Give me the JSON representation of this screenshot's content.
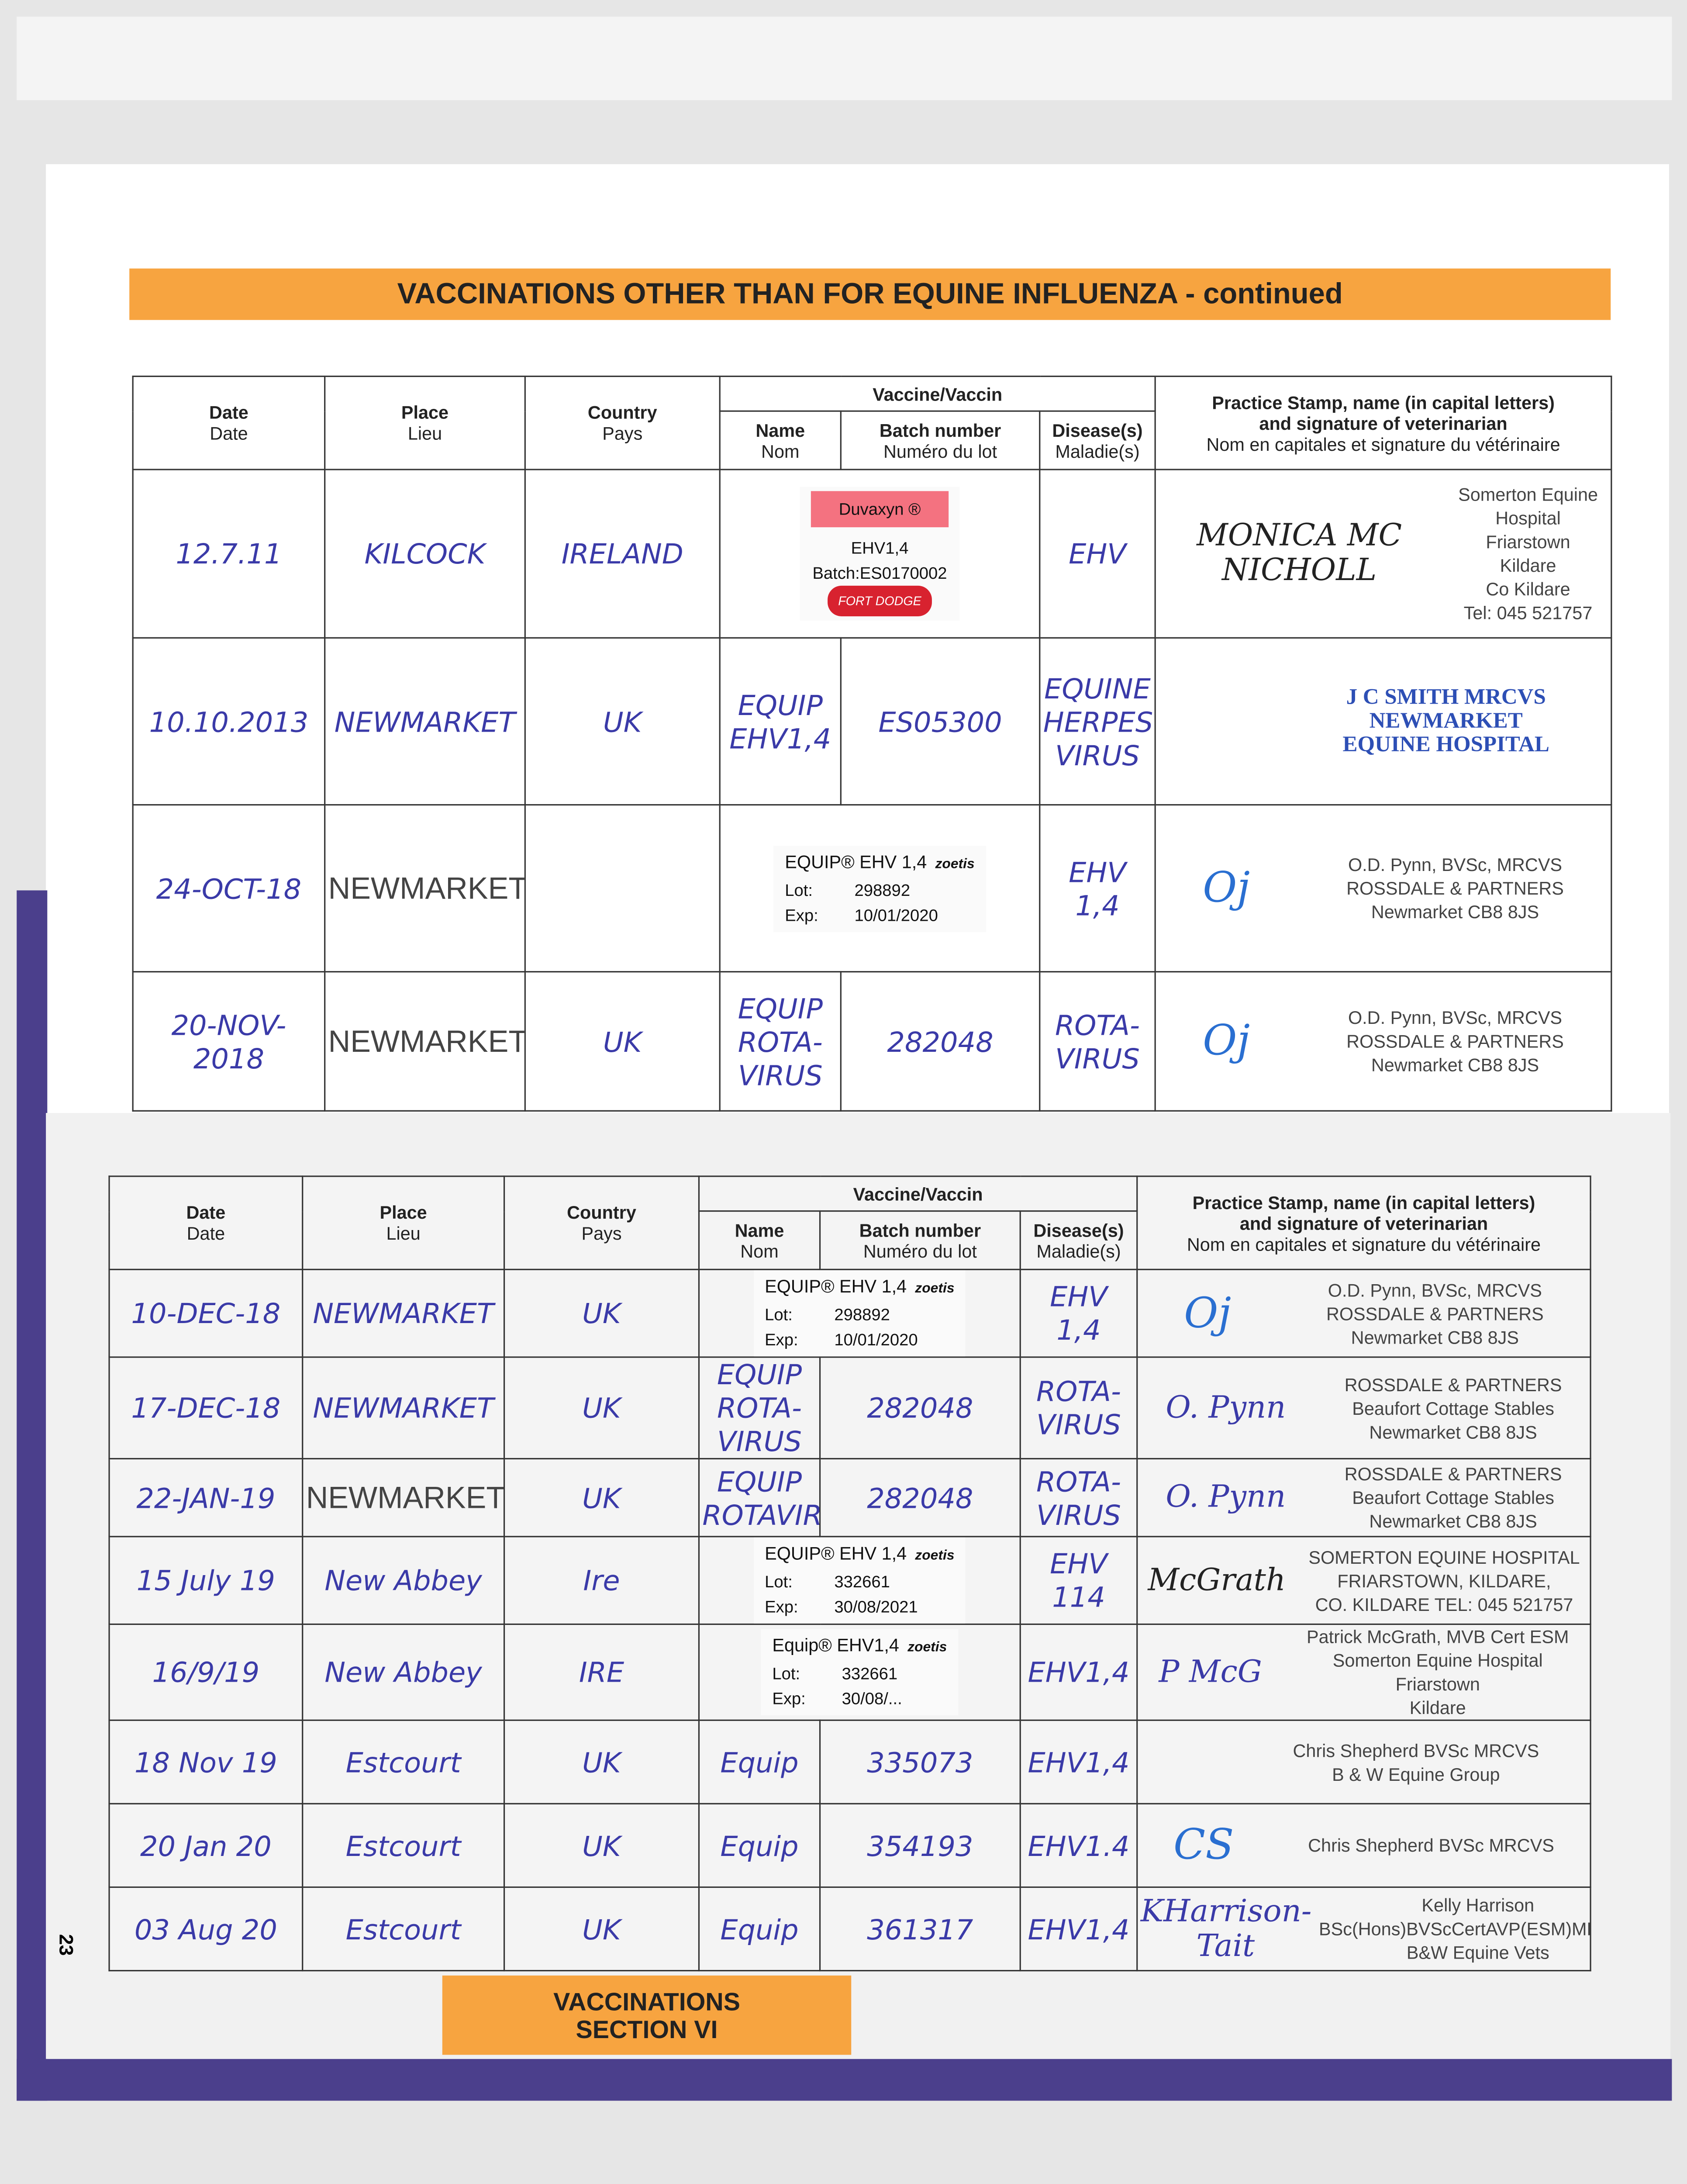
{
  "title": "VACCINATIONS OTHER THAN FOR EQUINE INFLUENZA - continued",
  "headers": {
    "date": [
      "Date",
      "Date"
    ],
    "place": [
      "Place",
      "Lieu"
    ],
    "country": [
      "Country",
      "Pays"
    ],
    "vaccine": "Vaccine/Vaccin",
    "name": [
      "Name",
      "Nom"
    ],
    "batch": [
      "Batch number",
      "Numéro du lot"
    ],
    "disease": [
      "Disease(s)",
      "Maladie(s)"
    ],
    "stamp": [
      "Practice Stamp, name (in capital letters)",
      "and signature of veterinarian",
      "Nom en capitales et signature du vétérinaire"
    ]
  },
  "upper_rows": [
    {
      "date": "12.7.11",
      "place": "KILCOCK",
      "country": "IRELAND",
      "sticker": {
        "brand": "Duvaxyn ®",
        "lines": [
          "EHV1,4",
          "Batch:ES0170002",
          "FORT DODGE"
        ]
      },
      "disease": [
        "EHV"
      ],
      "signature": [
        "MONICA MC NICHOLL"
      ],
      "stamp": [
        "Somerton Equine Hospital",
        "Friarstown",
        "Kildare",
        "Co Kildare",
        "Tel: 045 521757"
      ]
    },
    {
      "date": "10.10.2013",
      "place": "NEWMARKET",
      "country": "UK",
      "name": [
        "EQUIP",
        "EHV1,4"
      ],
      "batch": [
        "ES05300"
      ],
      "disease": [
        "EQUINE",
        "HERPES",
        "VIRUS"
      ],
      "signature": [],
      "stamp_blue": [
        "J C SMITH MRCVS",
        "NEWMARKET",
        "EQUINE HOSPITAL"
      ]
    },
    {
      "date": "24-OCT-18",
      "place": "NEWMARKET",
      "country": "",
      "sticker": {
        "product": "EQUIP® EHV 1,4",
        "maker": "zoetis",
        "lot_label": "Lot:",
        "lot": "298892",
        "exp_label": "Exp:",
        "exp": "10/01/2020"
      },
      "disease": [
        "EHV",
        "1,4"
      ],
      "signature": [
        "Oj"
      ],
      "stamp": [
        "O.D. Pynn, BVSc, MRCVS",
        "ROSSDALE & PARTNERS",
        "Newmarket CB8 8JS"
      ]
    },
    {
      "date": "20-NOV-2018",
      "place": "NEWMARKET",
      "country": "UK",
      "name": [
        "EQUIP",
        "ROTA-",
        "VIRUS"
      ],
      "batch": [
        "282048"
      ],
      "disease": [
        "ROTA-",
        "VIRUS"
      ],
      "signature": [
        "Oj"
      ],
      "stamp": [
        "O.D. Pynn, BVSc, MRCVS",
        "ROSSDALE & PARTNERS",
        "Newmarket CB8 8JS"
      ]
    }
  ],
  "lower_rows": [
    {
      "date": "10-DEC-18",
      "place": "NEWMARKET",
      "country": "UK",
      "sticker": {
        "product": "EQUIP® EHV 1,4",
        "maker": "zoetis",
        "lot_label": "Lot:",
        "lot": "298892",
        "exp_label": "Exp:",
        "exp": "10/01/2020"
      },
      "disease": [
        "EHV",
        "1,4"
      ],
      "signature": [
        "Oj"
      ],
      "stamp": [
        "O.D. Pynn, BVSc, MRCVS",
        "ROSSDALE & PARTNERS",
        "Newmarket CB8 8JS"
      ]
    },
    {
      "date": "17-DEC-18",
      "place": "NEWMARKET",
      "country": "UK",
      "name": [
        "EQUIP",
        "ROTA-",
        "VIRUS"
      ],
      "batch": [
        "282048"
      ],
      "disease": [
        "ROTA-",
        "VIRUS"
      ],
      "signature": [
        "O. Pynn"
      ],
      "stamp": [
        "ROSSDALE & PARTNERS",
        "Beaufort Cottage Stables",
        "Newmarket CB8 8JS"
      ]
    },
    {
      "date": "22-JAN-19",
      "place": "NEWMARKET",
      "country": "UK",
      "name": [
        "EQUIP",
        "ROTAVIRUS"
      ],
      "batch": [
        "282048"
      ],
      "disease": [
        "ROTA-",
        "VIRUS"
      ],
      "signature": [
        "O. Pynn"
      ],
      "stamp": [
        "ROSSDALE & PARTNERS",
        "Beaufort Cottage Stables",
        "Newmarket CB8 8JS"
      ]
    },
    {
      "date": "15 July 19",
      "place": "New Abbey",
      "country": "Ire",
      "sticker": {
        "product": "EQUIP® EHV 1,4",
        "maker": "zoetis",
        "lot_label": "Lot:",
        "lot": "332661",
        "exp_label": "Exp:",
        "exp": "30/08/2021"
      },
      "disease": [
        "EHV",
        "114"
      ],
      "signature": [
        "McGrath"
      ],
      "stamp": [
        "SOMERTON EQUINE HOSPITAL",
        "FRIARSTOWN, KILDARE,",
        "CO. KILDARE TEL: 045 521757"
      ]
    },
    {
      "date": "16/9/19",
      "place": "New Abbey",
      "country": "IRE",
      "sticker": {
        "product": "Equip® EHV1,4",
        "maker": "zoetis",
        "lot_label": "Lot:",
        "lot": "332661",
        "exp_label": "Exp:",
        "exp": "30/08/..."
      },
      "disease": [
        "EHV1,4"
      ],
      "signature": [
        "P McG"
      ],
      "stamp": [
        "Patrick McGrath, MVB Cert ESM",
        "Somerton Equine Hospital",
        "Friarstown",
        "Kildare"
      ]
    },
    {
      "date": "18 Nov 19",
      "place": "Estcourt",
      "country": "UK",
      "name": [
        "Equip"
      ],
      "batch": [
        "335073"
      ],
      "disease": [
        "EHV1,4"
      ],
      "signature": [],
      "stamp": [
        "Chris Shepherd BVSc MRCVS",
        "B & W Equine Group"
      ]
    },
    {
      "date": "20 Jan 20",
      "place": "Estcourt",
      "country": "UK",
      "name": [
        "Equip"
      ],
      "batch": [
        "354193"
      ],
      "disease": [
        "EHV1.4"
      ],
      "signature": [
        "CS"
      ],
      "stamp": [
        "Chris Shepherd BVSc MRCVS"
      ]
    },
    {
      "date": "03 Aug 20",
      "place": "Estcourt",
      "country": "UK",
      "name": [
        "Equip"
      ],
      "batch": [
        "361317"
      ],
      "disease": [
        "EHV1,4"
      ],
      "signature": [
        "KHarrison-Tait"
      ],
      "stamp": [
        "Kelly Harrison",
        "BSc(Hons)BVScCertAVP(ESM)MRCVS",
        "B&W Equine Vets"
      ]
    }
  ],
  "section_box": [
    "VACCINATIONS",
    "SECTION VI"
  ],
  "page_number": "23",
  "colors": {
    "orange": "#f7a440",
    "ink_blue": "#3a3aa8",
    "cover_purple": "#4b3f8c",
    "sticker_red": "#f47280"
  }
}
